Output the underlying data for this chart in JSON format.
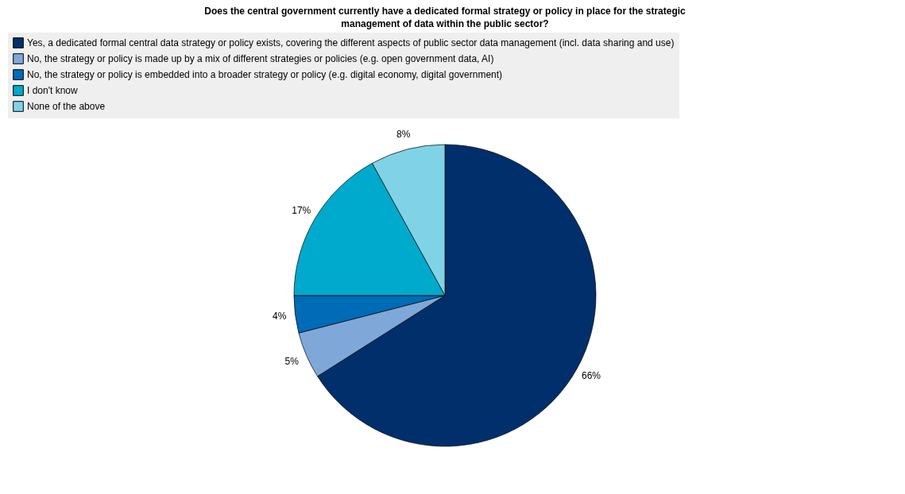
{
  "chart_data": {
    "type": "pie",
    "title": "Does the central government currently have a dedicated formal strategy or policy in place for the strategic management of data within the public sector?",
    "categories": [
      "Yes, a dedicated formal central data strategy or policy exists, covering the different aspects of public sector data management (incl. data sharing and use)",
      "No, the strategy or policy is made up by a mix of different strategies or policies (e.g. open government data, AI)",
      "No, the strategy or policy is embedded into a broader strategy or policy (e.g. digital economy, digital government)",
      "I don't know",
      "None of the above"
    ],
    "values": [
      66,
      5,
      4,
      17,
      8
    ],
    "colors": [
      "#002f6c",
      "#7fa8d9",
      "#006bb6",
      "#00aacc",
      "#80d3e6"
    ],
    "value_labels": [
      "66%",
      "5%",
      "4%",
      "17%",
      "8%"
    ],
    "legend": "top"
  }
}
